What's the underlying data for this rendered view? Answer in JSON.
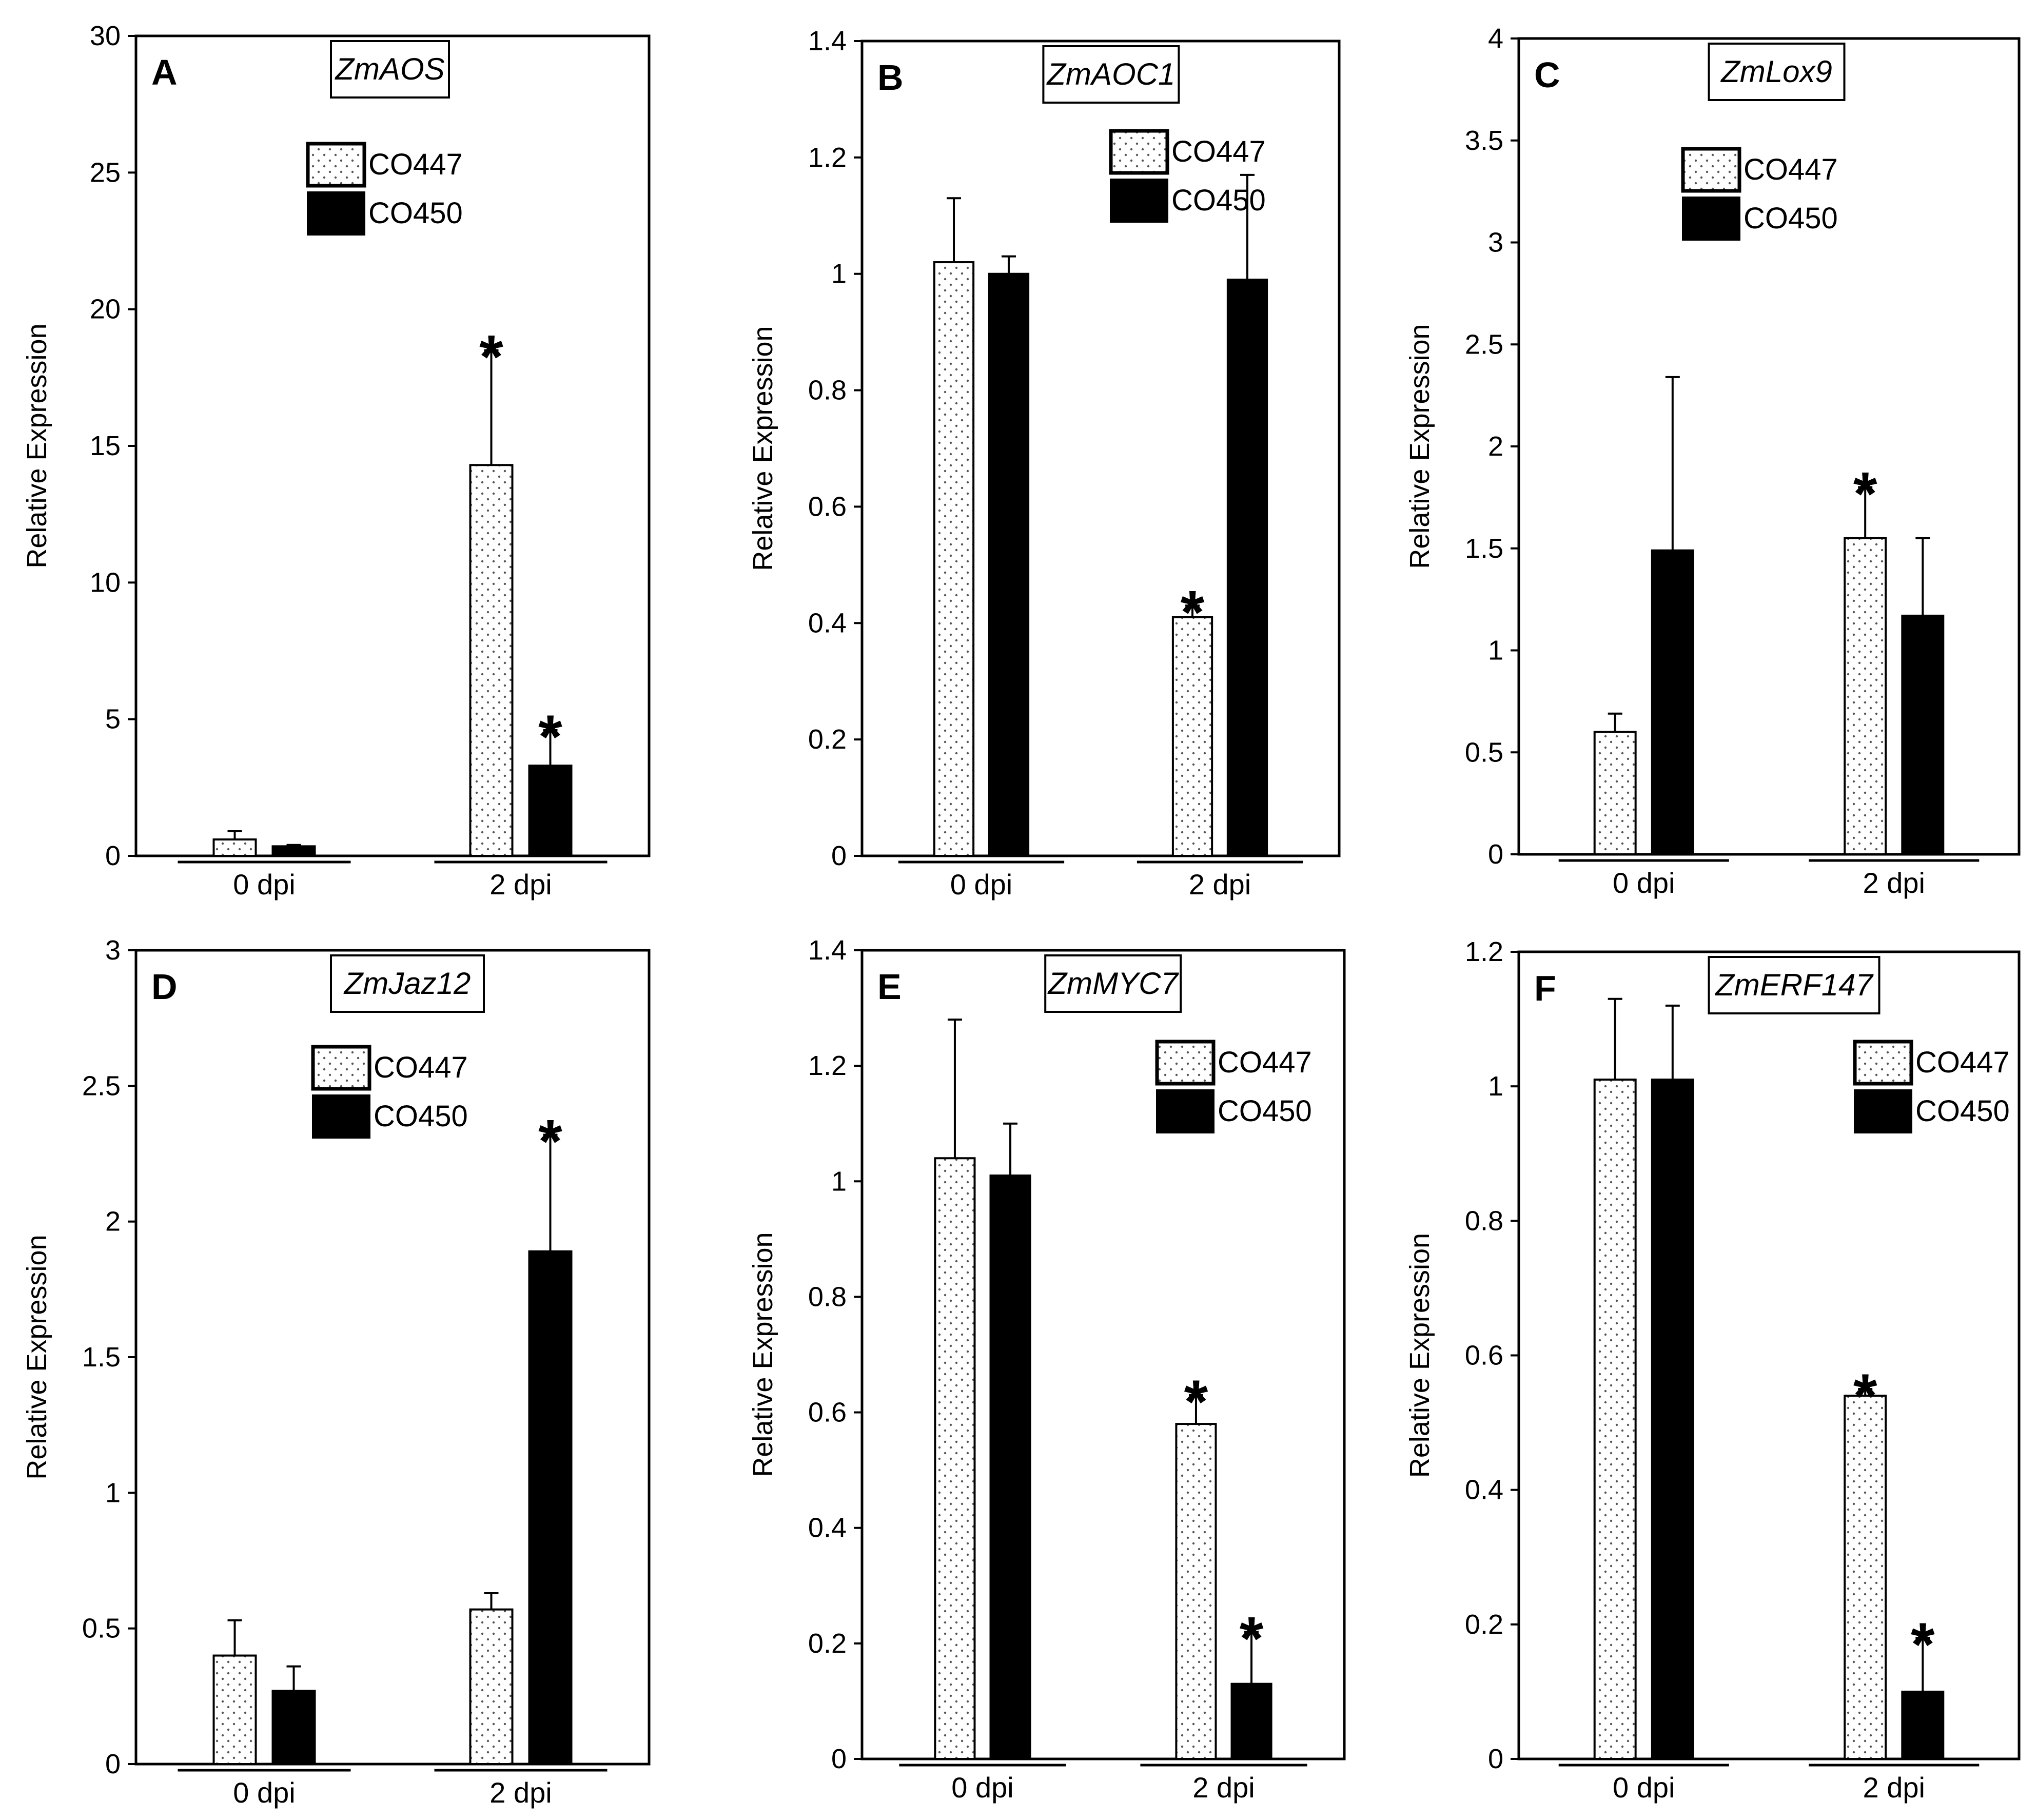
{
  "chart_data": [
    {
      "type": "bar",
      "panel": "A",
      "title": "ZmAOS",
      "ylabel": "Relative Expression",
      "ylim": [
        0,
        30
      ],
      "yticks": [
        0,
        5,
        10,
        15,
        20,
        25,
        30
      ],
      "categories": [
        "0 dpi",
        "2 dpi"
      ],
      "series": [
        {
          "name": "CO447",
          "values": [
            0.6,
            14.3
          ],
          "errors": [
            0.3,
            4.2
          ],
          "significant": [
            false,
            true
          ]
        },
        {
          "name": "CO450",
          "values": [
            0.35,
            3.3
          ],
          "errors": [
            0.05,
            1.3
          ],
          "significant": [
            false,
            true
          ]
        }
      ],
      "legend_position": "top-center"
    },
    {
      "type": "bar",
      "panel": "B",
      "title": "ZmAOC1",
      "ylabel": "Relative Expression",
      "ylim": [
        0,
        1.4
      ],
      "yticks": [
        0,
        0.2,
        0.4,
        0.6,
        0.8,
        1,
        1.2,
        1.4
      ],
      "categories": [
        "0 dpi",
        "2 dpi"
      ],
      "series": [
        {
          "name": "CO447",
          "values": [
            1.02,
            0.41
          ],
          "errors": [
            0.11,
            0.02
          ],
          "significant": [
            false,
            true
          ]
        },
        {
          "name": "CO450",
          "values": [
            1.0,
            0.99
          ],
          "errors": [
            0.03,
            0.18
          ],
          "significant": [
            false,
            false
          ]
        }
      ],
      "legend_position": "top-right"
    },
    {
      "type": "bar",
      "panel": "C",
      "title": "ZmLox9",
      "ylabel": "Relative Expression",
      "ylim": [
        0,
        4
      ],
      "yticks": [
        0,
        0.5,
        1,
        1.5,
        2,
        2.5,
        3,
        3.5,
        4
      ],
      "categories": [
        "0 dpi",
        "2 dpi"
      ],
      "series": [
        {
          "name": "CO447",
          "values": [
            0.6,
            1.55
          ],
          "errors": [
            0.09,
            0.25
          ],
          "significant": [
            false,
            true
          ]
        },
        {
          "name": "CO450",
          "values": [
            1.49,
            1.17
          ],
          "errors": [
            0.85,
            0.38
          ],
          "significant": [
            false,
            false
          ]
        }
      ],
      "legend_position": "top-center"
    },
    {
      "type": "bar",
      "panel": "D",
      "title": "ZmJaz12",
      "ylabel": "Relative Expression",
      "ylim": [
        0,
        3
      ],
      "yticks": [
        0,
        0.5,
        1,
        1.5,
        2,
        2.5,
        3
      ],
      "categories": [
        "0 dpi",
        "2 dpi"
      ],
      "series": [
        {
          "name": "CO447",
          "values": [
            0.4,
            0.57
          ],
          "errors": [
            0.13,
            0.06
          ],
          "significant": [
            false,
            false
          ]
        },
        {
          "name": "CO450",
          "values": [
            0.27,
            1.89
          ],
          "errors": [
            0.09,
            0.43
          ],
          "significant": [
            false,
            true
          ]
        }
      ],
      "legend_position": "top-center"
    },
    {
      "type": "bar",
      "panel": "E",
      "title": "ZmMYC7",
      "ylabel": "Relative Expression",
      "ylim": [
        0,
        1.4
      ],
      "yticks": [
        0,
        0.2,
        0.4,
        0.6,
        0.8,
        1,
        1.2,
        1.4
      ],
      "categories": [
        "0 dpi",
        "2 dpi"
      ],
      "series": [
        {
          "name": "CO447",
          "values": [
            1.04,
            0.58
          ],
          "errors": [
            0.24,
            0.05
          ],
          "significant": [
            false,
            true
          ]
        },
        {
          "name": "CO450",
          "values": [
            1.01,
            0.13
          ],
          "errors": [
            0.09,
            0.09
          ],
          "significant": [
            false,
            true
          ]
        }
      ],
      "legend_position": "top-right"
    },
    {
      "type": "bar",
      "panel": "F",
      "title": "ZmERF147",
      "ylabel": "Relative Expression",
      "ylim": [
        0,
        1.2
      ],
      "yticks": [
        0,
        0.2,
        0.4,
        0.6,
        0.8,
        1,
        1.2
      ],
      "categories": [
        "0 dpi",
        "2 dpi"
      ],
      "series": [
        {
          "name": "CO447",
          "values": [
            1.01,
            0.54
          ],
          "errors": [
            0.12,
            0.01
          ],
          "significant": [
            false,
            true
          ]
        },
        {
          "name": "CO450",
          "values": [
            1.01,
            0.1
          ],
          "errors": [
            0.11,
            0.08
          ],
          "significant": [
            false,
            true
          ]
        }
      ],
      "legend_position": "top-right"
    }
  ]
}
